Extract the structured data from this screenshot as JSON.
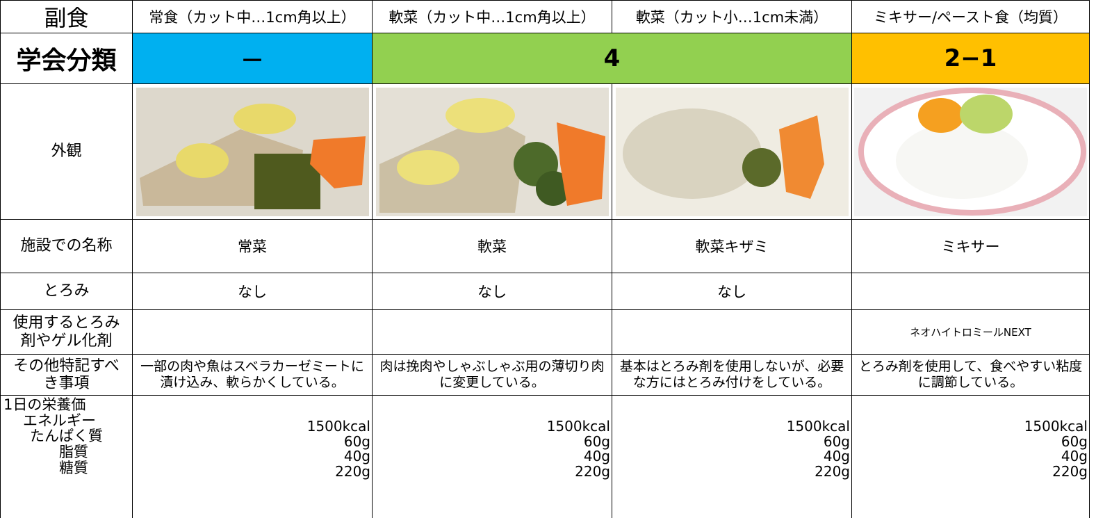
{
  "table": {
    "header": [
      "副食",
      "常食（カット中…1cm角以上）",
      "軟菜（カット中…1cm角以上）",
      "軟菜（カット小…1cm未満）",
      "ミキサー/ペースト食（均質）"
    ],
    "classification": {
      "label": "学会分類",
      "groups": [
        "－",
        "4",
        "2−1"
      ]
    },
    "appearance": {
      "label": "外観"
    },
    "facility_name": {
      "label": "施設での名称",
      "cells": [
        "常菜",
        "軟菜",
        "軟菜キザミ",
        "ミキサー"
      ]
    },
    "thickening": {
      "label": "とろみ",
      "cells": [
        "なし",
        "なし",
        "なし"
      ]
    },
    "agent": {
      "label": "使用するとろみ剤やゲル化剤",
      "cells": [
        "ネオハイトロミールNEXT"
      ]
    },
    "notes": {
      "label": "その他特記すべき事項",
      "cells": [
        "一部の肉や魚はスベラカーゼミートに漬け込み、軟らかくしている。",
        "肉は挽肉やしゃぶしゃぶ用の薄切り肉に変更している。",
        "基本はとろみ剤を使用しないが、必要な方にはとろみ付けをしている。",
        "とろみ剤を使用して、食べやすい粘度に調節している。"
      ]
    },
    "nutrition": {
      "label_lines": [
        "1日の栄養価",
        "エネルギー",
        "たんぱく質",
        "脂質",
        "糖質"
      ],
      "cells": [
        [
          "1500kcal",
          "60g",
          "40g",
          "220g"
        ],
        [
          "1500kcal",
          "60g",
          "40g",
          "220g"
        ],
        [
          "1500kcal",
          "60g",
          "40g",
          "220g"
        ],
        [
          "1500kcal",
          "60g",
          "40g",
          "220g"
        ]
      ]
    }
  }
}
